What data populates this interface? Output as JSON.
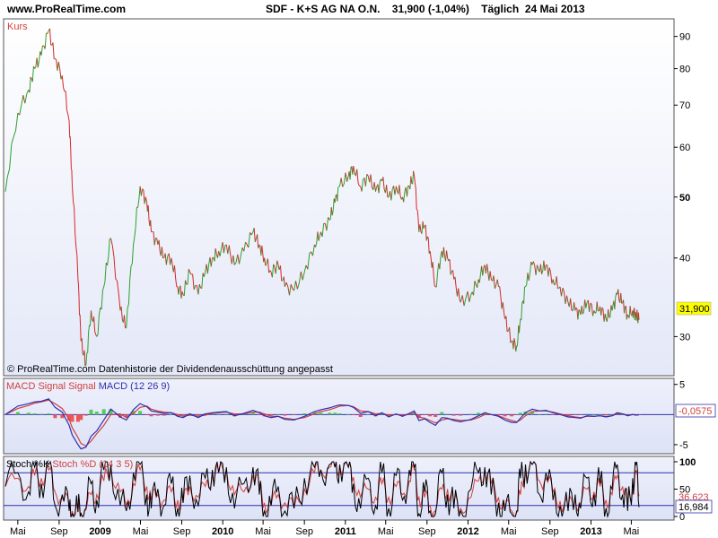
{
  "header": {
    "site": "www.ProRealTime.com",
    "title": "SDF - K+S AG NA O.N.    31,900 (-1,04%)    Täglich  24 Mai 2013"
  },
  "panels": {
    "price": {
      "label": "Kurs",
      "footnote": "© ProRealTime.com  Datenhistorie der Dividendenausschüttung angepasst",
      "last_value": "31,900",
      "y_ticks": [
        "90",
        "80",
        "70",
        "60",
        "50",
        "40",
        "30"
      ],
      "bold_ticks": [
        "50"
      ]
    },
    "macd": {
      "legend": [
        {
          "text": "MACD",
          "color": "#d04040"
        },
        {
          "text": " Signal Signal ",
          "color": "#d04040"
        },
        {
          "text": "MACD (12 26 9)",
          "color": "#3030b0"
        }
      ],
      "last_value": "-0,0575",
      "y_ticks": [
        "5",
        "-5"
      ]
    },
    "stoch": {
      "legend": [
        {
          "text": "Stoch %K",
          "color": "#000000"
        },
        {
          "text": " Stoch %D (14 3 5)",
          "color": "#d04040"
        }
      ],
      "y_ticks": [
        "100",
        "50",
        "0"
      ],
      "last_k": "16,984",
      "last_d": "36,623"
    }
  },
  "x_axis": {
    "ticks": [
      "Mai",
      "Sep",
      "2009",
      "Mai",
      "Sep",
      "2010",
      "Mai",
      "Sep",
      "2011",
      "Mai",
      "Sep",
      "2012",
      "Mai",
      "Sep",
      "2013",
      "Mai"
    ],
    "bold_ticks": [
      "2009",
      "2010",
      "2011",
      "2012",
      "2013"
    ]
  },
  "colors": {
    "up": "#2ca02c",
    "down": "#d62728",
    "macd_line": "#3030b0",
    "signal_line": "#d04040",
    "hist_pos": "#55cc55",
    "hist_neg": "#ee5555",
    "panel_bg_top": "#ffffff",
    "panel_bg_bottom": "#e4e8f8",
    "ref_line": "#3030b0",
    "price_label_bg": "#ffff00"
  },
  "chart_data": [
    {
      "type": "line",
      "title": "SDF - K+S AG NA O.N.",
      "ylabel": "Kurs",
      "y_scale": "log",
      "ylim": [
        26,
        96
      ],
      "x": [
        "2008-03-25",
        "2008-05-01",
        "2008-06-02",
        "2008-06-20",
        "2008-07-10",
        "2008-08-01",
        "2008-08-20",
        "2008-09-10",
        "2008-10-01",
        "2008-10-10",
        "2008-10-27",
        "2008-11-05",
        "2008-11-20",
        "2008-12-05",
        "2008-12-22",
        "2009-01-12",
        "2009-02-02",
        "2009-03-02",
        "2009-03-20",
        "2009-04-10",
        "2009-04-30",
        "2009-05-20",
        "2009-06-02",
        "2009-06-22",
        "2009-07-10",
        "2009-08-01",
        "2009-08-20",
        "2009-09-05",
        "2009-09-25",
        "2009-10-20",
        "2009-11-10",
        "2009-12-01",
        "2009-12-20",
        "2010-01-12",
        "2010-02-05",
        "2010-03-05",
        "2010-04-01",
        "2010-04-20",
        "2010-05-05",
        "2010-05-25",
        "2010-06-15",
        "2010-07-05",
        "2010-08-01",
        "2010-09-01",
        "2010-10-01",
        "2010-10-20",
        "2010-11-15",
        "2010-12-01",
        "2010-12-15",
        "2011-01-10",
        "2011-01-25",
        "2011-02-15",
        "2011-03-10",
        "2011-04-01",
        "2011-04-20",
        "2011-05-10",
        "2011-06-01",
        "2011-06-20",
        "2011-07-10",
        "2011-07-25",
        "2011-08-08",
        "2011-08-25",
        "2011-09-10",
        "2011-09-26",
        "2011-10-15",
        "2011-11-01",
        "2011-11-20",
        "2011-12-10",
        "2012-01-10",
        "2012-02-01",
        "2012-02-20",
        "2012-03-10",
        "2012-04-01",
        "2012-04-20",
        "2012-05-10",
        "2012-05-25",
        "2012-06-05",
        "2012-06-20",
        "2012-07-10",
        "2012-08-01",
        "2012-08-20",
        "2012-09-10",
        "2012-10-01",
        "2012-10-25",
        "2012-11-15",
        "2012-12-01",
        "2012-12-20",
        "2013-01-10",
        "2013-01-28",
        "2013-02-15",
        "2013-03-05",
        "2013-03-20",
        "2013-04-05",
        "2013-04-20",
        "2013-05-05",
        "2013-05-15",
        "2013-05-24"
      ],
      "series": [
        {
          "values": [
            51.0,
            68.0,
            74.0,
            80.0,
            84.0,
            92.0,
            83.0,
            78.0,
            66.0,
            52.0,
            37.0,
            29.5,
            27.0,
            33.0,
            30.0,
            36.0,
            43.0,
            33.0,
            31.0,
            42.0,
            52.0,
            49.0,
            44.0,
            42.0,
            40.0,
            40.0,
            36.0,
            35.0,
            38.0,
            35.0,
            38.0,
            40.0,
            41.0,
            42.0,
            39.0,
            41.0,
            44.0,
            42.0,
            40.0,
            38.0,
            39.0,
            36.0,
            35.5,
            38.0,
            42.0,
            44.0,
            46.0,
            49.0,
            52.0,
            54.0,
            56.0,
            52.0,
            54.0,
            51.0,
            53.0,
            50.0,
            52.0,
            50.0,
            52.0,
            54.0,
            44.0,
            45.0,
            41.0,
            36.0,
            41.0,
            40.0,
            37.0,
            34.0,
            35.0,
            37.0,
            39.0,
            37.0,
            36.0,
            32.0,
            29.5,
            29.0,
            32.0,
            36.0,
            39.0,
            38.0,
            39.0,
            37.0,
            36.0,
            34.0,
            33.0,
            32.5,
            34.0,
            33.0,
            33.5,
            32.0,
            33.0,
            35.0,
            34.0,
            32.5,
            33.0,
            32.5,
            31.9
          ]
        }
      ]
    },
    {
      "type": "line",
      "title": "MACD (12 26 9)",
      "ylim": [
        -6.5,
        6
      ],
      "x": [
        "2008-03-25",
        "2008-05-01",
        "2008-06-02",
        "2008-06-20",
        "2008-07-10",
        "2008-08-01",
        "2008-08-20",
        "2008-09-10",
        "2008-10-01",
        "2008-10-10",
        "2008-10-27",
        "2008-11-05",
        "2008-11-20",
        "2008-12-05",
        "2008-12-22",
        "2009-01-12",
        "2009-02-02",
        "2009-03-02",
        "2009-03-20",
        "2009-04-10",
        "2009-04-30",
        "2009-05-20",
        "2009-06-02",
        "2009-06-22",
        "2009-07-10",
        "2009-08-01",
        "2009-08-20",
        "2009-09-05",
        "2009-09-25",
        "2009-10-20",
        "2009-11-10",
        "2009-12-01",
        "2009-12-20",
        "2010-01-12",
        "2010-02-05",
        "2010-03-05",
        "2010-04-01",
        "2010-04-20",
        "2010-05-05",
        "2010-05-25",
        "2010-06-15",
        "2010-07-05",
        "2010-08-01",
        "2010-09-01",
        "2010-10-01",
        "2010-10-20",
        "2010-11-15",
        "2010-12-01",
        "2010-12-15",
        "2011-01-10",
        "2011-01-25",
        "2011-02-15",
        "2011-03-10",
        "2011-04-01",
        "2011-04-20",
        "2011-05-10",
        "2011-06-01",
        "2011-06-20",
        "2011-07-10",
        "2011-07-25",
        "2011-08-08",
        "2011-08-25",
        "2011-09-10",
        "2011-09-26",
        "2011-10-15",
        "2011-11-01",
        "2011-11-20",
        "2011-12-10",
        "2012-01-10",
        "2012-02-01",
        "2012-02-20",
        "2012-03-10",
        "2012-04-01",
        "2012-04-20",
        "2012-05-10",
        "2012-05-25",
        "2012-06-05",
        "2012-06-20",
        "2012-07-10",
        "2012-08-01",
        "2012-08-20",
        "2012-09-10",
        "2012-10-01",
        "2012-10-25",
        "2012-11-15",
        "2012-12-01",
        "2012-12-20",
        "2013-01-10",
        "2013-01-28",
        "2013-02-15",
        "2013-03-05",
        "2013-03-20",
        "2013-04-05",
        "2013-04-20",
        "2013-05-05",
        "2013-05-15",
        "2013-05-24"
      ],
      "series": [
        {
          "name": "MACD",
          "values": [
            0.0,
            1.4,
            1.8,
            2.1,
            2.2,
            2.6,
            1.2,
            0.4,
            -1.8,
            -3.4,
            -5.0,
            -5.7,
            -5.4,
            -3.6,
            -2.7,
            -0.9,
            0.9,
            -0.4,
            -0.9,
            0.8,
            1.8,
            1.3,
            0.6,
            0.4,
            0.2,
            0.3,
            -0.3,
            -0.5,
            0.1,
            -0.5,
            0.1,
            0.3,
            0.4,
            0.5,
            -0.2,
            0.2,
            0.7,
            0.3,
            -0.2,
            -0.5,
            -0.3,
            -0.8,
            -0.9,
            -0.3,
            0.5,
            0.8,
            1.1,
            1.4,
            1.6,
            1.5,
            1.2,
            0.2,
            0.5,
            -0.2,
            0.3,
            -0.4,
            0.1,
            -0.3,
            0.2,
            0.6,
            -1.0,
            -0.7,
            -1.3,
            -1.8,
            -0.5,
            -0.6,
            -1.0,
            -1.2,
            -0.8,
            -0.2,
            0.3,
            0.0,
            -0.3,
            -0.9,
            -1.3,
            -1.3,
            -0.6,
            0.3,
            0.9,
            0.6,
            0.7,
            0.3,
            0.0,
            -0.4,
            -0.5,
            -0.6,
            -0.2,
            -0.3,
            -0.2,
            -0.4,
            -0.2,
            0.3,
            0.1,
            -0.2,
            0.0,
            -0.1,
            -0.06
          ]
        },
        {
          "name": "Signal",
          "values": [
            0.0,
            1.0,
            1.5,
            1.9,
            2.1,
            2.4,
            1.8,
            1.0,
            -0.8,
            -2.2,
            -3.8,
            -4.8,
            -5.2,
            -4.4,
            -3.2,
            -1.8,
            0.0,
            0.1,
            -0.5,
            0.2,
            1.2,
            1.4,
            0.9,
            0.6,
            0.4,
            0.3,
            0.0,
            -0.3,
            -0.1,
            -0.3,
            -0.1,
            0.2,
            0.3,
            0.4,
            0.1,
            0.1,
            0.4,
            0.4,
            0.1,
            -0.3,
            -0.3,
            -0.6,
            -0.8,
            -0.5,
            0.1,
            0.5,
            0.8,
            1.1,
            1.4,
            1.5,
            1.3,
            0.6,
            0.5,
            0.1,
            0.2,
            -0.1,
            0.0,
            -0.1,
            0.0,
            0.3,
            -0.4,
            -0.6,
            -1.0,
            -1.4,
            -0.9,
            -0.7,
            -0.8,
            -1.0,
            -0.9,
            -0.5,
            0.0,
            0.0,
            -0.2,
            -0.6,
            -1.0,
            -1.2,
            -0.9,
            -0.2,
            0.5,
            0.6,
            0.6,
            0.4,
            0.1,
            -0.2,
            -0.4,
            -0.5,
            -0.3,
            -0.3,
            -0.2,
            -0.3,
            -0.2,
            0.1,
            0.1,
            -0.1,
            0.0,
            -0.05,
            -0.03
          ]
        }
      ]
    },
    {
      "type": "line",
      "title": "Stoch %K, Stoch %D (14 3 5)",
      "ylim": [
        0,
        100
      ],
      "reference_lines": [
        80,
        20
      ],
      "x": [
        "2008-03-25",
        "2008-05-01",
        "2008-06-02",
        "2008-06-20",
        "2008-07-10",
        "2008-08-01",
        "2008-08-20",
        "2008-09-10",
        "2008-10-01",
        "2008-10-10",
        "2008-10-27",
        "2008-11-05",
        "2008-11-20",
        "2008-12-05",
        "2008-12-22",
        "2009-01-12",
        "2009-02-02",
        "2009-03-02",
        "2009-03-20",
        "2009-04-10",
        "2009-04-30",
        "2009-05-20",
        "2009-06-02",
        "2009-06-22",
        "2009-07-10",
        "2009-08-01",
        "2009-08-20",
        "2009-09-05",
        "2009-09-25",
        "2009-10-20",
        "2009-11-10",
        "2009-12-01",
        "2009-12-20",
        "2010-01-12",
        "2010-02-05",
        "2010-03-05",
        "2010-04-01",
        "2010-04-20",
        "2010-05-05",
        "2010-05-25",
        "2010-06-15",
        "2010-07-05",
        "2010-08-01",
        "2010-09-01",
        "2010-10-01",
        "2010-10-20",
        "2010-11-15",
        "2010-12-01",
        "2010-12-15",
        "2011-01-10",
        "2011-01-25",
        "2011-02-15",
        "2011-03-10",
        "2011-04-01",
        "2011-04-20",
        "2011-05-10",
        "2011-06-01",
        "2011-06-20",
        "2011-07-10",
        "2011-07-25",
        "2011-08-08",
        "2011-08-25",
        "2011-09-10",
        "2011-09-26",
        "2011-10-15",
        "2011-11-01",
        "2011-11-20",
        "2011-12-10",
        "2012-01-10",
        "2012-02-01",
        "2012-02-20",
        "2012-03-10",
        "2012-04-01",
        "2012-04-20",
        "2012-05-10",
        "2012-05-25",
        "2012-06-05",
        "2012-06-20",
        "2012-07-10",
        "2012-08-01",
        "2012-08-20",
        "2012-09-10",
        "2012-10-01",
        "2012-10-25",
        "2012-11-15",
        "2012-12-01",
        "2012-12-20",
        "2013-01-10",
        "2013-01-28",
        "2013-02-15",
        "2013-03-05",
        "2013-03-20",
        "2013-04-05",
        "2013-04-20",
        "2013-05-05",
        "2013-05-15",
        "2013-05-24"
      ],
      "series": [
        {
          "name": "Stoch %K",
          "values": [
            55,
            80,
            45,
            90,
            60,
            95,
            20,
            40,
            10,
            5,
            8,
            5,
            15,
            60,
            30,
            85,
            95,
            20,
            10,
            80,
            95,
            40,
            15,
            50,
            20,
            60,
            15,
            25,
            75,
            20,
            70,
            85,
            80,
            90,
            15,
            60,
            90,
            40,
            10,
            20,
            55,
            10,
            15,
            70,
            90,
            85,
            95,
            90,
            95,
            90,
            60,
            15,
            70,
            20,
            80,
            15,
            75,
            30,
            85,
            90,
            5,
            45,
            10,
            5,
            80,
            40,
            15,
            10,
            50,
            80,
            90,
            40,
            25,
            10,
            5,
            10,
            70,
            95,
            95,
            40,
            80,
            30,
            20,
            10,
            40,
            15,
            70,
            40,
            60,
            15,
            50,
            95,
            40,
            10,
            70,
            95,
            17
          ]
        },
        {
          "name": "Stoch %D",
          "values": [
            55,
            70,
            55,
            75,
            70,
            85,
            45,
            35,
            20,
            10,
            8,
            7,
            12,
            40,
            40,
            65,
            85,
            45,
            20,
            60,
            85,
            55,
            30,
            40,
            30,
            45,
            30,
            25,
            55,
            35,
            55,
            75,
            80,
            85,
            40,
            45,
            75,
            55,
            25,
            20,
            40,
            25,
            15,
            50,
            80,
            85,
            90,
            90,
            92,
            90,
            72,
            35,
            50,
            35,
            60,
            35,
            55,
            40,
            65,
            85,
            35,
            35,
            20,
            10,
            50,
            50,
            25,
            15,
            35,
            65,
            85,
            60,
            35,
            18,
            10,
            8,
            40,
            80,
            95,
            65,
            70,
            45,
            28,
            15,
            30,
            22,
            50,
            45,
            55,
            30,
            40,
            75,
            55,
            25,
            50,
            80,
            37
          ]
        }
      ]
    }
  ]
}
